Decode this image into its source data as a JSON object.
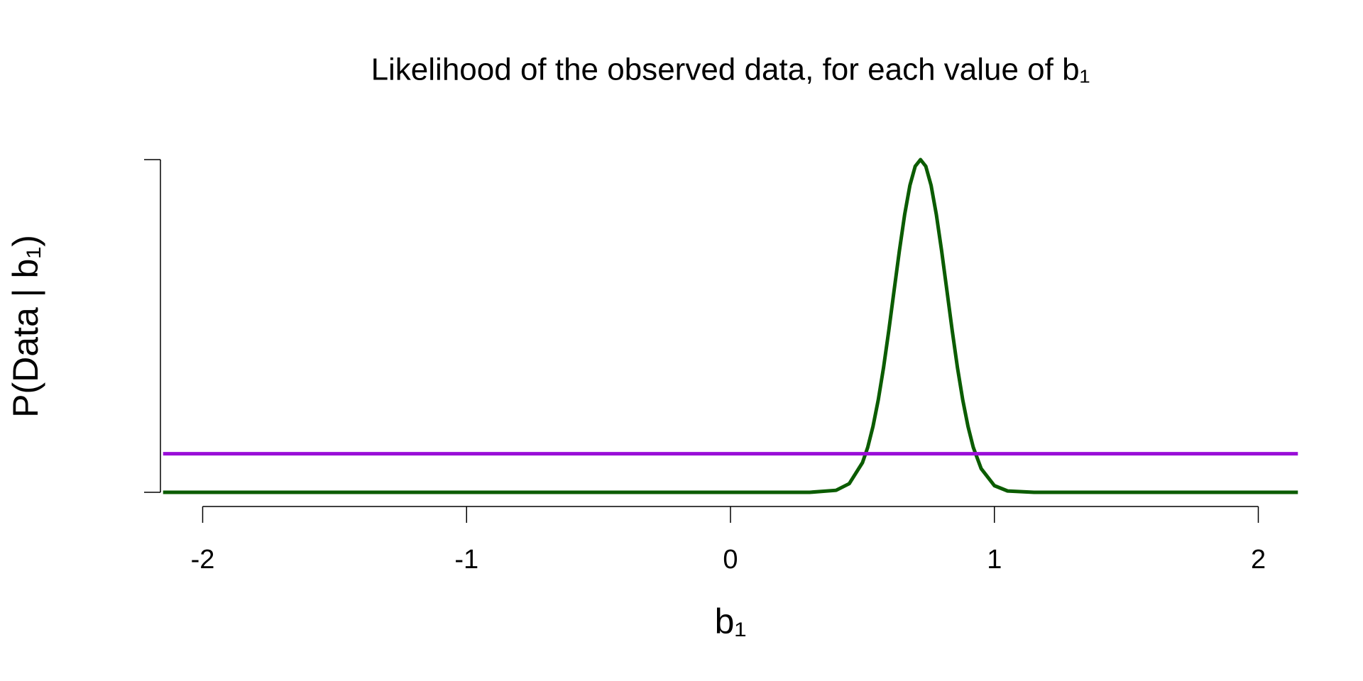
{
  "chart_data": {
    "type": "line",
    "title": "Likelihood of the observed data, for each value of b₁",
    "xlabel": "b₁",
    "ylabel": "P(Data | b₁)",
    "xlim": [
      -2.16,
      2.16
    ],
    "xticks": [
      -2,
      -1,
      0,
      1,
      2
    ],
    "ylim": [
      0,
      1
    ],
    "yticks": [
      0,
      1
    ],
    "ytick_labels": false,
    "series": [
      {
        "color": "#0b5c00",
        "x": [
          -2.15,
          -1.75,
          -1.25,
          -0.75,
          -0.25,
          0.1,
          0.3,
          0.4,
          0.45,
          0.5,
          0.52,
          0.54,
          0.56,
          0.58,
          0.6,
          0.62,
          0.64,
          0.66,
          0.68,
          0.7,
          0.72,
          0.74,
          0.76,
          0.78,
          0.8,
          0.82,
          0.84,
          0.86,
          0.88,
          0.9,
          0.92,
          0.95,
          1.0,
          1.05,
          1.15,
          1.35,
          1.75,
          2.15
        ],
        "values": [
          0,
          0,
          0,
          0,
          0,
          0,
          0,
          0.006,
          0.026,
          0.089,
          0.135,
          0.198,
          0.278,
          0.375,
          0.487,
          0.607,
          0.726,
          0.835,
          0.923,
          0.98,
          1,
          0.98,
          0.923,
          0.835,
          0.726,
          0.607,
          0.487,
          0.375,
          0.278,
          0.198,
          0.135,
          0.071,
          0.02,
          0.004,
          0,
          0,
          0,
          0
        ]
      },
      {
        "color": "#9a0ed8",
        "x": [
          -2.15,
          2.15
        ],
        "values": [
          0.116,
          0.116
        ]
      }
    ]
  }
}
